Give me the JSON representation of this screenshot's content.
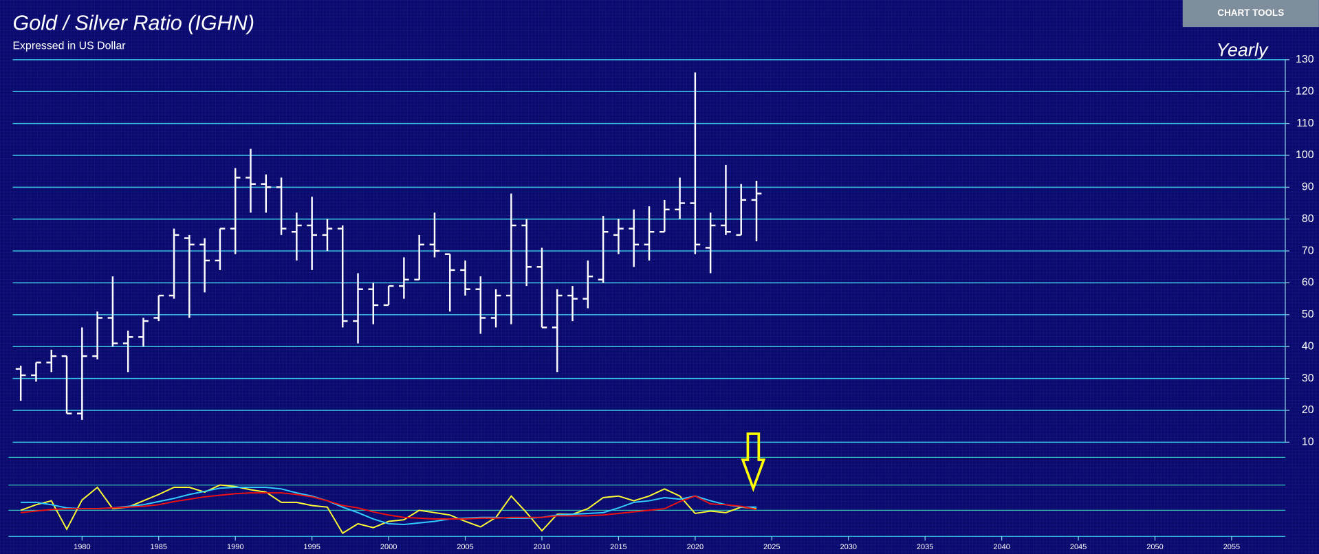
{
  "toolbar": {
    "button": "CHART TOOLS"
  },
  "chart_data": [
    {
      "type": "ohlc",
      "title": "Gold / Silver Ratio (IGHN)",
      "subtitle": "Expressed in US Dollar",
      "annotation": "Yearly",
      "color": "#ffffff",
      "x": [
        1976,
        1977,
        1978,
        1979,
        1980,
        1981,
        1982,
        1983,
        1984,
        1985,
        1986,
        1987,
        1988,
        1989,
        1990,
        1991,
        1992,
        1993,
        1994,
        1995,
        1996,
        1997,
        1998,
        1999,
        2000,
        2001,
        2002,
        2003,
        2004,
        2005,
        2006,
        2007,
        2008,
        2009,
        2010,
        2011,
        2012,
        2013,
        2014,
        2015,
        2016,
        2017,
        2018,
        2019,
        2020,
        2021,
        2022,
        2023,
        2024
      ],
      "open": [
        33,
        31,
        35,
        37,
        19,
        37,
        49,
        41,
        43,
        49,
        56,
        74,
        72,
        67,
        77,
        93,
        91,
        90,
        76,
        78,
        75,
        77,
        48,
        58,
        53,
        59,
        61,
        72,
        69,
        64,
        58,
        49,
        56,
        78,
        65,
        46,
        56,
        55,
        61,
        75,
        77,
        72,
        76,
        83,
        85,
        71,
        78,
        75,
        86
      ],
      "high": [
        34,
        35,
        39,
        37,
        46,
        51,
        62,
        45,
        49,
        56,
        77,
        75,
        74,
        77,
        96,
        102,
        94,
        93,
        82,
        87,
        80,
        78,
        63,
        60,
        59,
        68,
        75,
        82,
        69,
        67,
        62,
        58,
        88,
        80,
        71,
        58,
        59,
        67,
        81,
        80,
        83,
        84,
        86,
        93,
        126,
        82,
        97,
        91,
        92
      ],
      "low": [
        23,
        29,
        32,
        19,
        17,
        36,
        40,
        32,
        40,
        48,
        55,
        49,
        57,
        64,
        69,
        82,
        82,
        75,
        67,
        64,
        70,
        46,
        41,
        47,
        53,
        55,
        61,
        68,
        51,
        56,
        44,
        46,
        47,
        59,
        46,
        32,
        48,
        52,
        60,
        69,
        65,
        67,
        76,
        80,
        69,
        63,
        75,
        75,
        73
      ],
      "close": [
        31,
        35,
        37,
        19,
        37,
        49,
        41,
        43,
        48,
        56,
        75,
        72,
        67,
        77,
        93,
        91,
        90,
        77,
        78,
        75,
        77,
        48,
        58,
        53,
        59,
        61,
        72,
        70,
        64,
        58,
        49,
        56,
        78,
        65,
        46,
        56,
        55,
        62,
        76,
        77,
        72,
        76,
        83,
        85,
        72,
        78,
        76,
        86,
        88
      ],
      "xlim": [
        1975.2,
        2058.5
      ],
      "ylim": [
        10,
        130
      ],
      "yticks": [
        10,
        20,
        30,
        40,
        50,
        60,
        70,
        80,
        90,
        100,
        110,
        120,
        130
      ],
      "grid": true
    },
    {
      "type": "line",
      "x": [
        1976,
        1977,
        1978,
        1979,
        1980,
        1981,
        1982,
        1983,
        1984,
        1985,
        1986,
        1987,
        1988,
        1989,
        1990,
        1991,
        1992,
        1993,
        1994,
        1995,
        1996,
        1997,
        1998,
        1999,
        2000,
        2001,
        2002,
        2003,
        2004,
        2005,
        2006,
        2007,
        2008,
        2009,
        2010,
        2011,
        2012,
        2013,
        2014,
        2015,
        2016,
        2017,
        2018,
        2019,
        2020,
        2021,
        2022,
        2023,
        2024
      ],
      "xlim": [
        1975.2,
        2058.5
      ],
      "ylim": [
        0,
        100
      ],
      "xticks": [
        1980,
        1985,
        1990,
        1995,
        2000,
        2005,
        2010,
        2015,
        2020,
        2025,
        2030,
        2035,
        2040,
        2045,
        2050,
        2055
      ],
      "series": [
        {
          "color": "#ffff33",
          "values": [
            33,
            40,
            45,
            9,
            46,
            62,
            35,
            37,
            45,
            53,
            62,
            62,
            56,
            65,
            63,
            59,
            56,
            43,
            43,
            39,
            37,
            4,
            16,
            11,
            19,
            21,
            33,
            30,
            27,
            19,
            12,
            24,
            51,
            30,
            7,
            28,
            28,
            35,
            49,
            51,
            45,
            51,
            60,
            51,
            29,
            32,
            30,
            37,
            35
          ]
        },
        {
          "color": "#33ccff",
          "values": [
            43,
            43,
            40,
            36,
            35,
            35,
            36,
            38,
            40,
            44,
            48,
            53,
            57,
            61,
            62,
            62,
            62,
            60,
            55,
            51,
            45,
            37,
            30,
            22,
            16,
            15,
            17,
            19,
            22,
            23,
            24,
            24,
            23,
            23,
            24,
            27,
            28,
            29,
            30,
            36,
            43,
            45,
            49,
            47,
            51,
            45,
            40,
            37,
            37
          ]
        },
        {
          "color": "#ee1111",
          "values": [
            30,
            32,
            34,
            35,
            35,
            35,
            36,
            37,
            38,
            40,
            44,
            47,
            50,
            52,
            54,
            55,
            55,
            55,
            53,
            50,
            45,
            39,
            36,
            31,
            27,
            24,
            23,
            22,
            22,
            22,
            23,
            23,
            24,
            24,
            24,
            26,
            26,
            26,
            27,
            29,
            31,
            33,
            35,
            44,
            51,
            41,
            40,
            38,
            34
          ]
        }
      ]
    }
  ]
}
